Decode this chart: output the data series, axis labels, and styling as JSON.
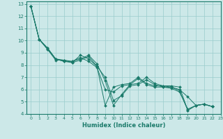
{
  "xlabel": "Humidex (Indice chaleur)",
  "ylabel": "",
  "xlim": [
    -0.5,
    23
  ],
  "ylim": [
    4,
    13.2
  ],
  "xticks": [
    0,
    1,
    2,
    3,
    4,
    5,
    6,
    7,
    8,
    9,
    10,
    11,
    12,
    13,
    14,
    15,
    16,
    17,
    18,
    19,
    20,
    21,
    22,
    23
  ],
  "yticks": [
    4,
    5,
    6,
    7,
    8,
    9,
    10,
    11,
    12,
    13
  ],
  "background_color": "#cce8e8",
  "grid_color": "#99cccc",
  "line_color": "#1a7a6a",
  "marker_color": "#1a7a6a",
  "series": [
    [
      12.8,
      10.1,
      9.4,
      8.5,
      8.3,
      8.3,
      8.5,
      8.8,
      8.1,
      6.7,
      4.7,
      5.6,
      6.4,
      6.5,
      7.0,
      6.5,
      6.3,
      6.3,
      6.2,
      4.3,
      4.7,
      4.8,
      4.6
    ],
    [
      12.8,
      10.1,
      9.4,
      8.5,
      8.3,
      8.2,
      8.4,
      8.7,
      7.9,
      7.0,
      5.1,
      5.5,
      6.3,
      6.4,
      6.8,
      6.4,
      6.2,
      6.2,
      6.0,
      5.4,
      4.7,
      4.8,
      4.6
    ],
    [
      12.8,
      10.1,
      9.3,
      8.4,
      8.4,
      8.2,
      8.8,
      8.5,
      7.9,
      4.7,
      6.2,
      6.4,
      6.5,
      7.0,
      6.5,
      6.3,
      6.3,
      6.2,
      5.9,
      4.3,
      4.7,
      4.8,
      4.6
    ],
    [
      12.8,
      10.1,
      9.3,
      8.5,
      8.4,
      8.3,
      8.6,
      8.3,
      7.8,
      6.0,
      5.8,
      6.3,
      6.4,
      6.9,
      6.4,
      6.2,
      6.2,
      6.1,
      5.8,
      4.4,
      4.7,
      4.8,
      4.6
    ]
  ]
}
